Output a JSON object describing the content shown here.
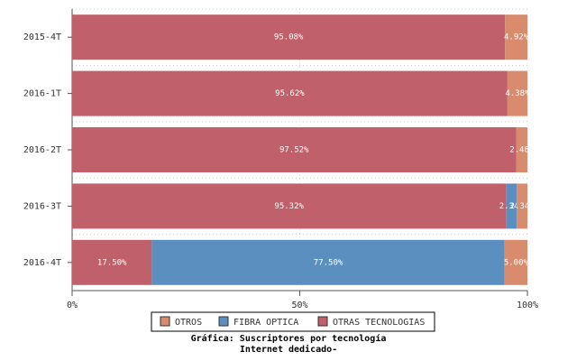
{
  "chart_data": {
    "type": "stacked-bar",
    "orientation": "horizontal",
    "title": "Gráfica: Suscriptores por tecnología",
    "subtitle": "Internet dedicado-",
    "categories": [
      "2015-4T",
      "2016-1T",
      "2016-2T",
      "2016-3T",
      "2016-4T"
    ],
    "series": [
      {
        "name": "OTRAS TECNOLOGIAS",
        "color": "#c0606a",
        "values": [
          95.08,
          95.62,
          97.52,
          95.32,
          17.5
        ],
        "value_labels": [
          "95.08%",
          "95.62%",
          "97.52%",
          "95.32%",
          "17.50%"
        ]
      },
      {
        "name": "FIBRA OPTICA",
        "color": "#5b8fbf",
        "values": [
          0,
          0,
          0,
          2.34,
          77.5
        ],
        "value_labels": [
          null,
          null,
          null,
          "2.34%",
          "77.50%"
        ]
      },
      {
        "name": "OTROS",
        "color": "#d98b6e",
        "values": [
          4.92,
          4.38,
          2.48,
          2.34,
          5.0
        ],
        "value_labels": [
          "4.92%",
          "4.38%",
          "2.48%",
          "2.34%",
          "5.00%"
        ]
      }
    ],
    "xlim": [
      0,
      100
    ],
    "xticks": [
      {
        "value": 0,
        "label": "0%"
      },
      {
        "value": 50,
        "label": "50%"
      },
      {
        "value": 100,
        "label": "100%"
      }
    ],
    "grid": true
  }
}
